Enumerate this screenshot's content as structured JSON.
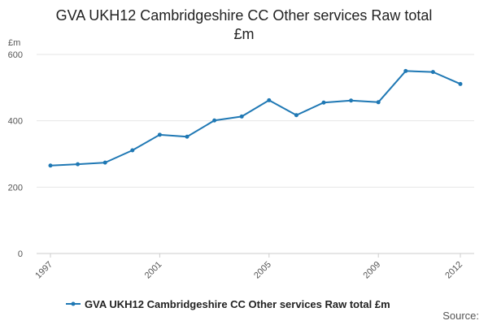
{
  "chart_data": {
    "type": "line",
    "title": "GVA UKH12 Cambridgeshire CC Other services Raw total £m",
    "ylabel": "£m",
    "xlabel": "",
    "ylim": [
      0,
      600
    ],
    "yticks": [
      "0",
      "200",
      "400",
      "600"
    ],
    "xlim": [
      1997,
      2012
    ],
    "xticks": [
      "1997",
      "2001",
      "2005",
      "2009",
      "2012"
    ],
    "grid": true,
    "legend_position": "bottom",
    "color": "#1f78b4",
    "series": [
      {
        "name": "GVA UKH12 Cambridgeshire CC Other services Raw total £m",
        "x": [
          1997,
          1998,
          1999,
          2000,
          2001,
          2002,
          2003,
          2004,
          2005,
          2006,
          2007,
          2008,
          2009,
          2010,
          2011,
          2012
        ],
        "values": [
          265,
          269,
          274,
          311,
          358,
          352,
          401,
          413,
          462,
          417,
          455,
          461,
          456,
          550,
          547,
          511
        ]
      }
    ],
    "source_label": "Source:"
  }
}
